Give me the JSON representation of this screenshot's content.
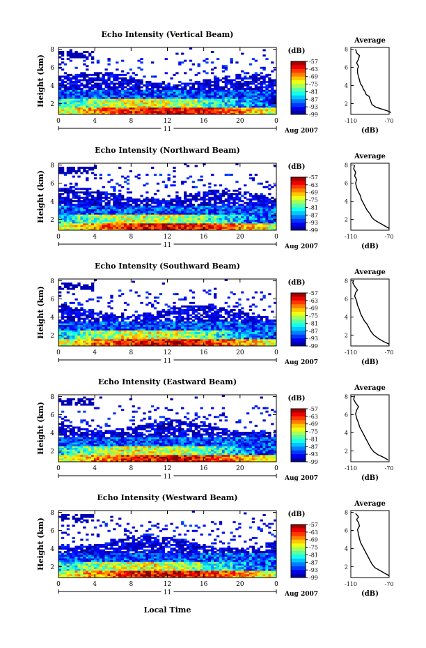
{
  "figure": {
    "date_label": "Aug 2007",
    "xlabel_bottom": "Local Time",
    "day_label": "11",
    "cbar_unit": "(dB)",
    "avg_title": "Average",
    "avg_xlabel": "(dB)"
  },
  "chart_data": [
    {
      "type": "heatmap",
      "title": "Echo Intensity (Vertical Beam)",
      "ylabel": "Height (km)",
      "x_ticks": [
        "0",
        "4",
        "8",
        "12",
        "16",
        "20",
        "0"
      ],
      "xlim": [
        0,
        24
      ],
      "y_ticks": [
        "2",
        "4",
        "6",
        "8"
      ],
      "ylim": [
        0.8,
        8.2
      ],
      "colorbar_ticks": [
        "-57",
        "-63",
        "-69",
        "-75",
        "-81",
        "-87",
        "-93",
        "-99"
      ],
      "colorbar_range": [
        -99,
        -57
      ],
      "profile": {
        "title": "Average",
        "xlabel": "(dB)",
        "x_ticks": [
          "-110",
          "-70"
        ],
        "xlim": [
          -110,
          -70
        ],
        "y_ticks": [
          "2",
          "4",
          "6",
          "8"
        ],
        "ylim": [
          0.8,
          8.2
        ],
        "points": [
          [
            -68,
            1.0
          ],
          [
            -72,
            1.2
          ],
          [
            -78,
            1.4
          ],
          [
            -84,
            1.6
          ],
          [
            -88,
            1.9
          ],
          [
            -89,
            2.2
          ],
          [
            -90,
            2.5
          ],
          [
            -91,
            2.8
          ],
          [
            -94,
            3.0
          ],
          [
            -95,
            3.3
          ],
          [
            -97,
            3.6
          ],
          [
            -98,
            3.9
          ],
          [
            -100,
            4.2
          ],
          [
            -101,
            4.6
          ],
          [
            -102,
            5.0
          ],
          [
            -103,
            5.4
          ],
          [
            -103,
            5.8
          ],
          [
            -102,
            6.1
          ],
          [
            -104,
            6.5
          ],
          [
            -102,
            6.9
          ],
          [
            -101,
            7.3
          ],
          [
            -104,
            7.6
          ],
          [
            -105,
            8.0
          ]
        ]
      }
    },
    {
      "type": "heatmap",
      "title": "Echo Intensity (Northward Beam)",
      "ylabel": "Height (km)",
      "x_ticks": [
        "0",
        "4",
        "8",
        "12",
        "16",
        "20",
        "0"
      ],
      "xlim": [
        0,
        24
      ],
      "y_ticks": [
        "2",
        "4",
        "6",
        "8"
      ],
      "ylim": [
        0.8,
        8.2
      ],
      "colorbar_ticks": [
        "-57",
        "-63",
        "-69",
        "-75",
        "-81",
        "-87",
        "-93",
        "-99"
      ],
      "colorbar_range": [
        -99,
        -57
      ],
      "profile": {
        "title": "Average",
        "xlabel": "(dB)",
        "x_ticks": [
          "-110",
          "-70"
        ],
        "xlim": [
          -110,
          -70
        ],
        "y_ticks": [
          "2",
          "4",
          "6",
          "8"
        ],
        "ylim": [
          0.8,
          8.2
        ],
        "points": [
          [
            -70,
            1.0
          ],
          [
            -75,
            1.3
          ],
          [
            -80,
            1.6
          ],
          [
            -85,
            1.9
          ],
          [
            -88,
            2.2
          ],
          [
            -90,
            2.6
          ],
          [
            -93,
            3.0
          ],
          [
            -95,
            3.4
          ],
          [
            -97,
            3.8
          ],
          [
            -99,
            4.2
          ],
          [
            -100,
            4.6
          ],
          [
            -102,
            5.0
          ],
          [
            -104,
            5.5
          ],
          [
            -105,
            6.0
          ],
          [
            -104,
            6.4
          ],
          [
            -106,
            6.8
          ],
          [
            -105,
            7.2
          ],
          [
            -107,
            7.6
          ],
          [
            -106,
            8.0
          ]
        ]
      }
    },
    {
      "type": "heatmap",
      "title": "Echo Intensity (Southward Beam)",
      "ylabel": "Height (km)",
      "x_ticks": [
        "0",
        "4",
        "8",
        "12",
        "16",
        "20",
        "0"
      ],
      "xlim": [
        0,
        24
      ],
      "y_ticks": [
        "2",
        "4",
        "6",
        "8"
      ],
      "ylim": [
        0.8,
        8.2
      ],
      "colorbar_ticks": [
        "-57",
        "-63",
        "-69",
        "-75",
        "-81",
        "-87",
        "-93",
        "-99"
      ],
      "colorbar_range": [
        -99,
        -57
      ],
      "profile": {
        "title": "Average",
        "xlabel": "(dB)",
        "x_ticks": [
          "-110",
          "-70"
        ],
        "xlim": [
          -110,
          -70
        ],
        "y_ticks": [
          "2",
          "4",
          "6",
          "8"
        ],
        "ylim": [
          0.8,
          8.2
        ],
        "points": [
          [
            -70,
            1.0
          ],
          [
            -76,
            1.3
          ],
          [
            -81,
            1.6
          ],
          [
            -86,
            2.0
          ],
          [
            -89,
            2.4
          ],
          [
            -91,
            2.8
          ],
          [
            -93,
            3.2
          ],
          [
            -96,
            3.6
          ],
          [
            -98,
            4.0
          ],
          [
            -100,
            4.4
          ],
          [
            -101,
            4.8
          ],
          [
            -103,
            5.3
          ],
          [
            -104,
            5.8
          ],
          [
            -106,
            6.3
          ],
          [
            -105,
            6.7
          ],
          [
            -103,
            7.0
          ],
          [
            -106,
            7.4
          ],
          [
            -108,
            7.8
          ],
          [
            -107,
            8.1
          ]
        ]
      }
    },
    {
      "type": "heatmap",
      "title": "Echo Intensity (Eastward Beam)",
      "ylabel": "Height (km)",
      "x_ticks": [
        "0",
        "4",
        "8",
        "12",
        "16",
        "20",
        "0"
      ],
      "xlim": [
        0,
        24
      ],
      "y_ticks": [
        "2",
        "4",
        "6",
        "8"
      ],
      "ylim": [
        0.8,
        8.2
      ],
      "colorbar_ticks": [
        "-57",
        "-63",
        "-69",
        "-75",
        "-81",
        "-87",
        "-93",
        "-99"
      ],
      "colorbar_range": [
        -99,
        -57
      ],
      "profile": {
        "title": "Average",
        "xlabel": "(dB)",
        "x_ticks": [
          "-110",
          "-70"
        ],
        "xlim": [
          -110,
          -70
        ],
        "y_ticks": [
          "2",
          "4",
          "6",
          "8"
        ],
        "ylim": [
          0.8,
          8.2
        ],
        "points": [
          [
            -71,
            1.0
          ],
          [
            -76,
            1.3
          ],
          [
            -82,
            1.6
          ],
          [
            -86,
            1.9
          ],
          [
            -89,
            2.3
          ],
          [
            -91,
            2.7
          ],
          [
            -93,
            3.1
          ],
          [
            -95,
            3.5
          ],
          [
            -97,
            3.9
          ],
          [
            -99,
            4.3
          ],
          [
            -101,
            4.7
          ],
          [
            -102,
            5.1
          ],
          [
            -104,
            5.6
          ],
          [
            -105,
            6.1
          ],
          [
            -104,
            6.5
          ],
          [
            -102,
            6.9
          ],
          [
            -105,
            7.3
          ],
          [
            -107,
            7.7
          ],
          [
            -106,
            8.1
          ]
        ]
      }
    },
    {
      "type": "heatmap",
      "title": "Echo Intensity (Westward Beam)",
      "ylabel": "Height (km)",
      "x_ticks": [
        "0",
        "4",
        "8",
        "12",
        "16",
        "20",
        "0"
      ],
      "xlim": [
        0,
        24
      ],
      "y_ticks": [
        "2",
        "4",
        "6",
        "8"
      ],
      "ylim": [
        0.8,
        8.2
      ],
      "colorbar_ticks": [
        "-57",
        "-63",
        "-69",
        "-75",
        "-81",
        "-87",
        "-93",
        "-99"
      ],
      "colorbar_range": [
        -99,
        -57
      ],
      "profile": {
        "title": "Average",
        "xlabel": "(dB)",
        "x_ticks": [
          "-110",
          "-70"
        ],
        "xlim": [
          -110,
          -70
        ],
        "y_ticks": [
          "2",
          "4",
          "6",
          "8"
        ],
        "ylim": [
          0.8,
          8.2
        ],
        "points": [
          [
            -70,
            1.0
          ],
          [
            -75,
            1.3
          ],
          [
            -80,
            1.6
          ],
          [
            -85,
            1.9
          ],
          [
            -88,
            2.3
          ],
          [
            -90,
            2.7
          ],
          [
            -92,
            3.1
          ],
          [
            -94,
            3.5
          ],
          [
            -96,
            3.9
          ],
          [
            -98,
            4.3
          ],
          [
            -100,
            4.7
          ],
          [
            -101,
            5.1
          ],
          [
            -102,
            5.6
          ],
          [
            -103,
            6.1
          ],
          [
            -101,
            6.5
          ],
          [
            -102,
            6.9
          ],
          [
            -104,
            7.2
          ],
          [
            -102,
            7.5
          ],
          [
            -105,
            7.9
          ]
        ]
      }
    }
  ]
}
